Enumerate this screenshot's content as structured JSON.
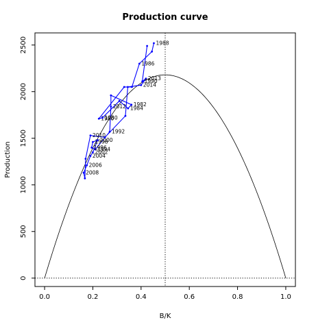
{
  "chart_data": {
    "type": "line",
    "title": "Production curve",
    "xlabel": "B/K",
    "ylabel": "Production",
    "xlim": [
      -0.04,
      1.04
    ],
    "ylim": [
      -90,
      2630
    ],
    "x_ticks": [
      "0.0",
      "0.2",
      "0.4",
      "0.6",
      "0.8",
      "1.0"
    ],
    "y_ticks": [
      "0",
      "500",
      "1000",
      "1500",
      "2000",
      "2500"
    ],
    "grid": false,
    "legend": "none",
    "colors": {
      "series": "#0000ff",
      "curve": "#000000",
      "reference": "#000000"
    },
    "production_curve": {
      "function": "parabola",
      "x_range": [
        0,
        1
      ],
      "peak_x": 0.5,
      "peak_y": 2180
    },
    "reference_lines": [
      {
        "type": "vertical",
        "x": 0.5,
        "style": "dotted"
      },
      {
        "type": "horizontal",
        "y": 0,
        "style": "dotted"
      }
    ],
    "series": [
      {
        "points": [
          {
            "x": 0.453,
            "y": 2520,
            "label": "1988"
          },
          {
            "x": 0.445,
            "y": 2430,
            "label": ""
          },
          {
            "x": 0.393,
            "y": 2300,
            "label": "1986"
          },
          {
            "x": 0.362,
            "y": 2050,
            "label": ""
          },
          {
            "x": 0.33,
            "y": 2050,
            "label": ""
          },
          {
            "x": 0.225,
            "y": 1710,
            "label": "1980"
          },
          {
            "x": 0.24,
            "y": 1720,
            "label": "1980"
          },
          {
            "x": 0.31,
            "y": 1900,
            "label": ""
          },
          {
            "x": 0.346,
            "y": 1820,
            "label": "1984"
          },
          {
            "x": 0.36,
            "y": 1860,
            "label": "1982"
          },
          {
            "x": 0.275,
            "y": 1960,
            "label": ""
          },
          {
            "x": 0.275,
            "y": 1840,
            "label": "2012"
          },
          {
            "x": 0.27,
            "y": 1570,
            "label": "1992"
          },
          {
            "x": 0.21,
            "y": 1380,
            "label": "1994"
          },
          {
            "x": 0.195,
            "y": 1400,
            "label": "1996"
          },
          {
            "x": 0.2,
            "y": 1460,
            "label": "1998"
          },
          {
            "x": 0.22,
            "y": 1480,
            "label": "2000"
          },
          {
            "x": 0.2,
            "y": 1350,
            "label": "2002"
          },
          {
            "x": 0.19,
            "y": 1310,
            "label": "2004"
          },
          {
            "x": 0.175,
            "y": 1210,
            "label": "2006"
          },
          {
            "x": 0.162,
            "y": 1130,
            "label": "2008"
          },
          {
            "x": 0.167,
            "y": 1070,
            "label": ""
          },
          {
            "x": 0.17,
            "y": 1280,
            "label": ""
          },
          {
            "x": 0.19,
            "y": 1530,
            "label": "2010"
          },
          {
            "x": 0.25,
            "y": 1510,
            "label": ""
          },
          {
            "x": 0.335,
            "y": 1740,
            "label": ""
          },
          {
            "x": 0.345,
            "y": 2050,
            "label": ""
          },
          {
            "x": 0.4,
            "y": 2070,
            "label": "2014"
          },
          {
            "x": 0.42,
            "y": 2140,
            "label": "2013"
          },
          {
            "x": 0.405,
            "y": 2110,
            "label": "1990"
          },
          {
            "x": 0.425,
            "y": 2490,
            "label": ""
          }
        ]
      }
    ]
  }
}
